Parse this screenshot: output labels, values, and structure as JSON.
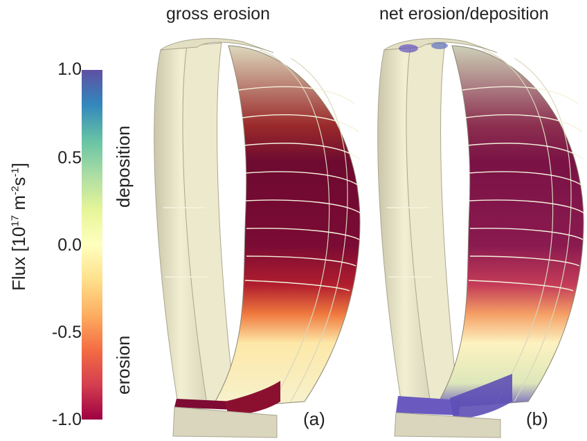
{
  "titles": {
    "a": "gross erosion",
    "b": "net erosion/deposition"
  },
  "colorbar": {
    "label_prefix": "Flux [10",
    "label_exp1": "17",
    "label_mid": " m",
    "label_exp2": "-2",
    "label_s": "s",
    "label_exp3": "-1",
    "label_suffix": "]",
    "ticks": [
      "1.0",
      "0.5",
      "0.0",
      "-0.5",
      "-1.0"
    ],
    "annotation_top": "deposition",
    "annotation_bottom": "erosion",
    "range": [
      -1.0,
      1.0
    ],
    "colors": [
      "#9e0142",
      "#d53e4f",
      "#f46d43",
      "#fdae61",
      "#fee08b",
      "#ffffbf",
      "#e6f598",
      "#abdda4",
      "#66c2a5",
      "#3288bd",
      "#5e4fa2"
    ]
  },
  "panels": {
    "a": "(a)",
    "b": "(b)"
  },
  "colors": {
    "wall_light": "#efeccb",
    "wall_shadow": "#b7b49a",
    "erosion_dark": "#7e0b33",
    "deposition": "#6a5ac0"
  }
}
